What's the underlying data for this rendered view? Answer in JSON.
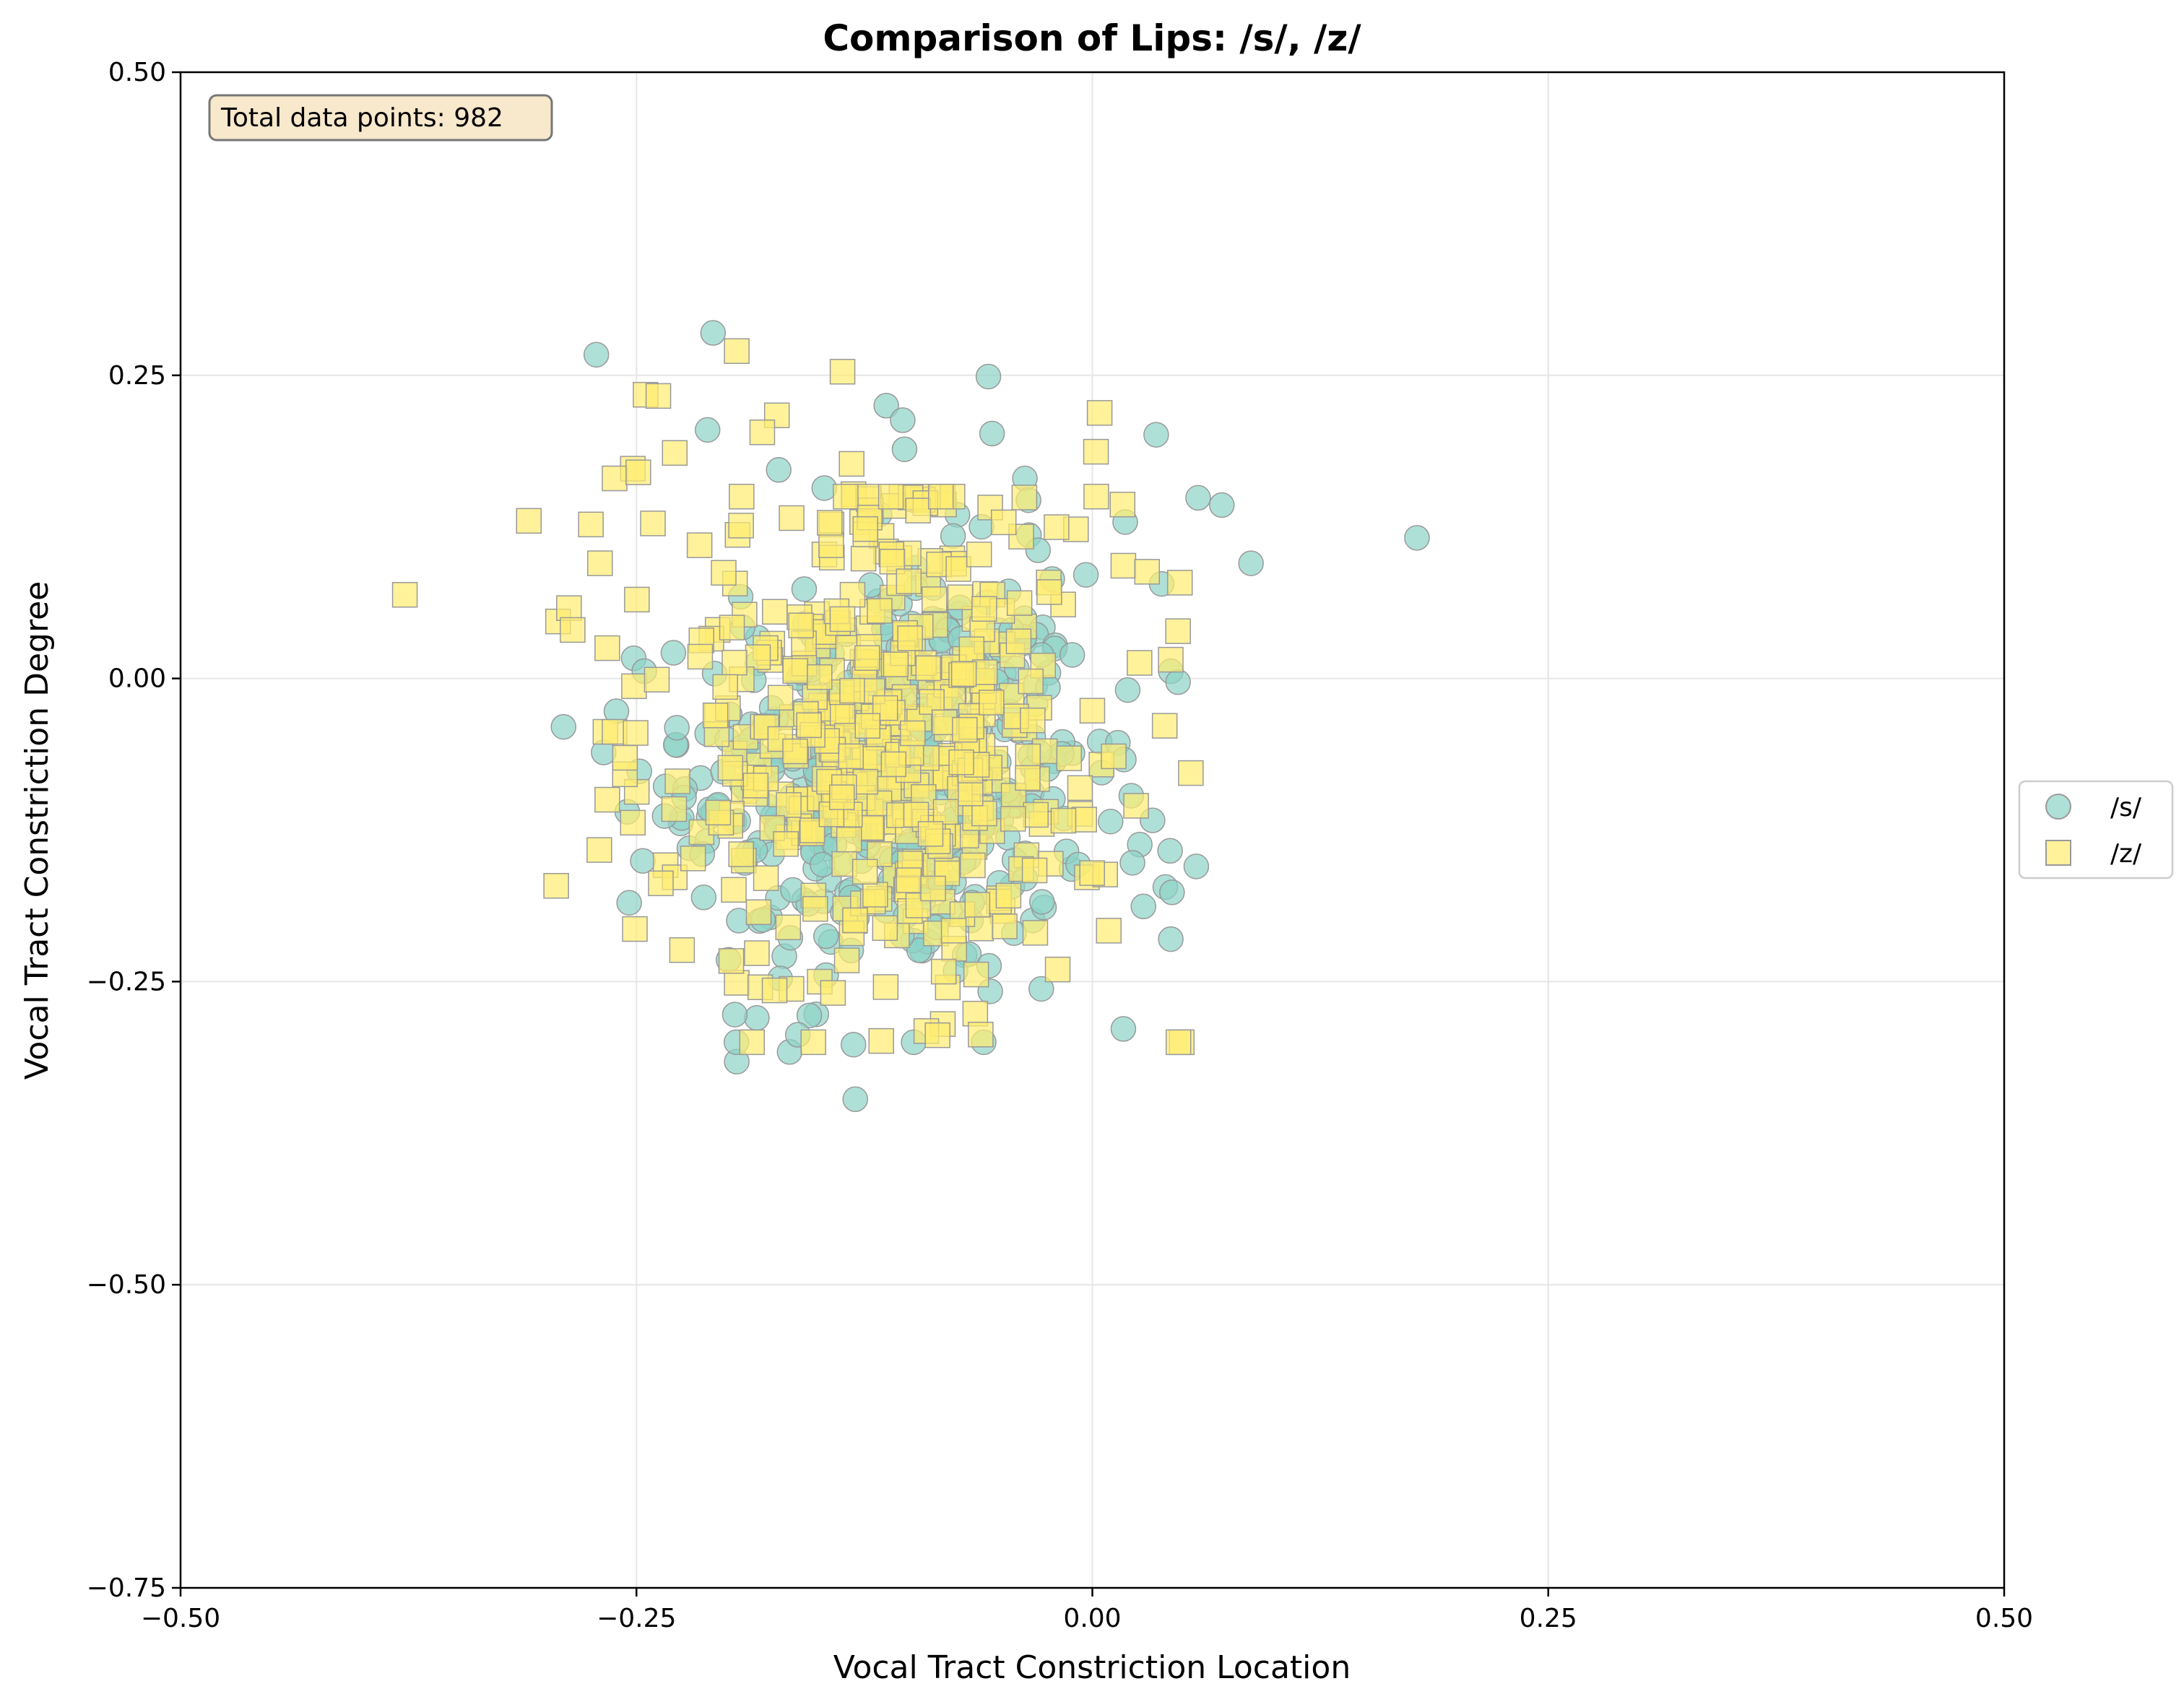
{
  "chart_data": {
    "type": "scatter",
    "title": "Comparison of Lips: /s/, /z/",
    "xlabel": "Vocal Tract Constriction Location",
    "ylabel": "Vocal Tract Constriction Degree",
    "xlim": [
      -0.5,
      0.5
    ],
    "ylim": [
      -0.75,
      0.5
    ],
    "xticks": [
      -0.5,
      -0.25,
      0.0,
      0.25,
      0.5
    ],
    "xtick_labels": [
      "−0.50",
      "−0.25",
      "0.00",
      "0.25",
      "0.50"
    ],
    "yticks": [
      -0.75,
      -0.5,
      -0.25,
      0.0,
      0.25,
      0.5
    ],
    "ytick_labels": [
      "−0.75",
      "−0.50",
      "−0.25",
      "0.00",
      "0.25",
      "0.50"
    ],
    "grid": true,
    "legend_position": "center-right outside",
    "annotation": "Total data points: 982",
    "colors": {
      "s_fill": "#8dd3c7",
      "z_fill": "#ffed6f",
      "marker_edge": "#999999",
      "annot_fill": "#f8e8cc",
      "annot_edge": "#777777",
      "grid": "#e6e6e6"
    },
    "series": [
      {
        "name": "/s/",
        "marker": "circle",
        "outliers": [
          [
            -0.272,
            0.267
          ],
          [
            -0.208,
            0.285
          ],
          [
            -0.057,
            0.249
          ],
          [
            -0.055,
            0.202
          ],
          [
            -0.113,
            0.225
          ],
          [
            -0.104,
            0.213
          ],
          [
            -0.211,
            0.205
          ],
          [
            -0.103,
            0.189
          ],
          [
            0.035,
            0.201
          ],
          [
            0.058,
            0.149
          ],
          [
            0.071,
            0.143
          ],
          [
            0.087,
            0.095
          ],
          [
            0.178,
            0.116
          ],
          [
            0.018,
            0.129
          ],
          [
            -0.037,
            0.165
          ],
          [
            -0.035,
            0.147
          ],
          [
            -0.172,
            0.172
          ],
          [
            -0.147,
            0.157
          ],
          [
            0.038,
            0.078
          ],
          [
            0.043,
            0.006
          ],
          [
            0.047,
            -0.003
          ],
          [
            0.057,
            -0.155
          ],
          [
            0.043,
            -0.215
          ],
          [
            0.04,
            -0.172
          ],
          [
            0.033,
            -0.117
          ],
          [
            0.026,
            -0.137
          ],
          [
            0.017,
            -0.289
          ],
          [
            -0.13,
            -0.347
          ],
          [
            -0.195,
            -0.316
          ],
          [
            -0.166,
            -0.308
          ],
          [
            -0.131,
            -0.302
          ],
          [
            -0.098,
            -0.3
          ],
          [
            -0.184,
            -0.28
          ],
          [
            -0.056,
            -0.258
          ],
          [
            -0.028,
            -0.256
          ],
          [
            -0.254,
            -0.185
          ],
          [
            -0.268,
            -0.061
          ],
          [
            -0.261,
            -0.027
          ],
          [
            -0.255,
            -0.11
          ],
          [
            -0.228,
            -0.055
          ],
          [
            -0.234,
            -0.089
          ],
          [
            -0.221,
            -0.14
          ],
          [
            0.022,
            -0.152
          ],
          [
            0.028,
            -0.188
          ],
          [
            0.004,
            -0.052
          ],
          [
            0.014,
            -0.053
          ],
          [
            0.01,
            -0.118
          ],
          [
            -0.022,
            0.082
          ],
          [
            -0.058,
            0.063
          ],
          [
            -0.074,
            0.135
          ]
        ],
        "cluster": {
          "count": 441,
          "x_center": -0.11,
          "x_spread": 0.055,
          "y_center": -0.08,
          "y_spread": 0.085
        }
      },
      {
        "name": "/z/",
        "marker": "square",
        "outliers": [
          [
            -0.377,
            0.069
          ],
          [
            -0.309,
            0.13
          ],
          [
            -0.294,
            -0.171
          ],
          [
            -0.293,
            0.047
          ],
          [
            -0.287,
            0.058
          ],
          [
            -0.285,
            0.04
          ],
          [
            -0.275,
            0.127
          ],
          [
            -0.245,
            0.234
          ],
          [
            -0.238,
            0.233
          ],
          [
            -0.195,
            0.27
          ],
          [
            -0.137,
            0.253
          ],
          [
            -0.173,
            0.217
          ],
          [
            -0.181,
            0.203
          ],
          [
            -0.132,
            0.177
          ],
          [
            -0.131,
            0.152
          ],
          [
            -0.229,
            0.186
          ],
          [
            -0.252,
            0.173
          ],
          [
            -0.262,
            0.165
          ],
          [
            -0.249,
            0.17
          ],
          [
            0.004,
            0.219
          ],
          [
            0.002,
            0.187
          ],
          [
            -0.056,
            0.141
          ],
          [
            -0.009,
            0.123
          ],
          [
            0.017,
            0.093
          ],
          [
            0.03,
            0.088
          ],
          [
            0.048,
            0.079
          ],
          [
            0.047,
            0.039
          ],
          [
            0.054,
            -0.078
          ],
          [
            0.049,
            -0.3
          ],
          [
            -0.082,
            -0.285
          ],
          [
            -0.153,
            -0.3
          ],
          [
            -0.165,
            -0.256
          ],
          [
            -0.195,
            -0.251
          ],
          [
            -0.225,
            -0.224
          ],
          [
            -0.198,
            -0.233
          ],
          [
            -0.234,
            -0.154
          ],
          [
            -0.229,
            -0.164
          ],
          [
            0.009,
            -0.208
          ],
          [
            0.024,
            -0.105
          ],
          [
            -0.266,
            -0.1
          ],
          [
            -0.267,
            -0.044
          ],
          [
            -0.262,
            -0.044
          ],
          [
            -0.266,
            0.025
          ],
          [
            -0.27,
            0.095
          ],
          [
            -0.095,
            0.148
          ],
          [
            -0.039,
            0.117
          ],
          [
            -0.016,
            0.061
          ],
          [
            0.005,
            -0.071
          ],
          [
            -0.003,
            -0.164
          ],
          [
            -0.019,
            -0.24
          ]
        ],
        "cluster": {
          "count": 441,
          "x_center": -0.115,
          "x_spread": 0.06,
          "y_center": -0.05,
          "y_spread": 0.1
        }
      }
    ]
  }
}
